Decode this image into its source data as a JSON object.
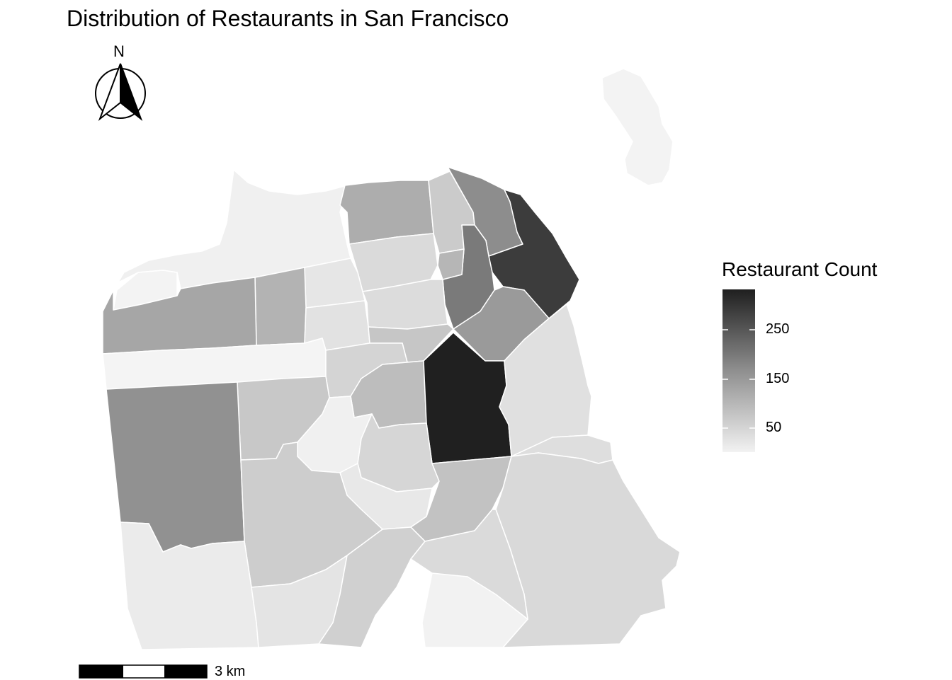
{
  "title": "Distribution of Restaurants in San Francisco",
  "north_arrow": {
    "label": "N",
    "icon": "north-arrow-icon"
  },
  "scale_bar": {
    "label": "3 km",
    "icon": "scale-bar-icon"
  },
  "legend": {
    "title": "Restaurant Count",
    "ticks": [
      "250",
      "150",
      "50"
    ],
    "tick_values": [
      250,
      150,
      50
    ],
    "color_low": "#f2f2f2",
    "color_high": "#1f1f1f"
  }
}
